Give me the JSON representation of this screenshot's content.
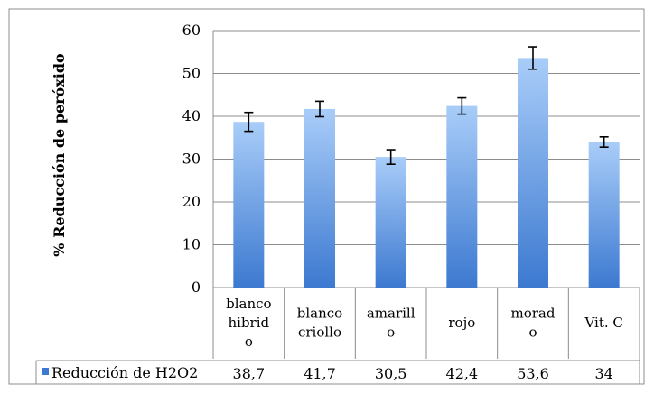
{
  "chart_data": {
    "type": "bar",
    "ylabel": "% Reducción de peróxido",
    "ylim": [
      0,
      60
    ],
    "yticks": [
      0,
      10,
      20,
      30,
      40,
      50,
      60
    ],
    "categories": [
      "blanco híbrido",
      "blanco criollo",
      "amarillo",
      "rojo",
      "morado",
      "Vit. C"
    ],
    "category_lines": [
      [
        "blanco",
        "hibrid",
        "o"
      ],
      [
        "blanco",
        "criollo"
      ],
      [
        "amarill",
        "o"
      ],
      [
        "rojo"
      ],
      [
        "morad",
        "o"
      ],
      [
        "Vit. C"
      ]
    ],
    "series": [
      {
        "name": "Reducción de H2O2",
        "values": [
          38.7,
          41.7,
          30.5,
          42.4,
          53.6,
          34
        ],
        "error": [
          2.2,
          1.8,
          1.7,
          1.9,
          2.6,
          1.2
        ],
        "value_labels": [
          "38,7",
          "41,7",
          "30,5",
          "42,4",
          "53,6",
          "34"
        ]
      }
    ],
    "grid": true,
    "legend": "data-table-left",
    "colors": {
      "bar_top": "#a9cdf9",
      "bar_bottom": "#3c79d0",
      "grid": "#8c8c8c",
      "border": "#8c8c8c"
    }
  }
}
